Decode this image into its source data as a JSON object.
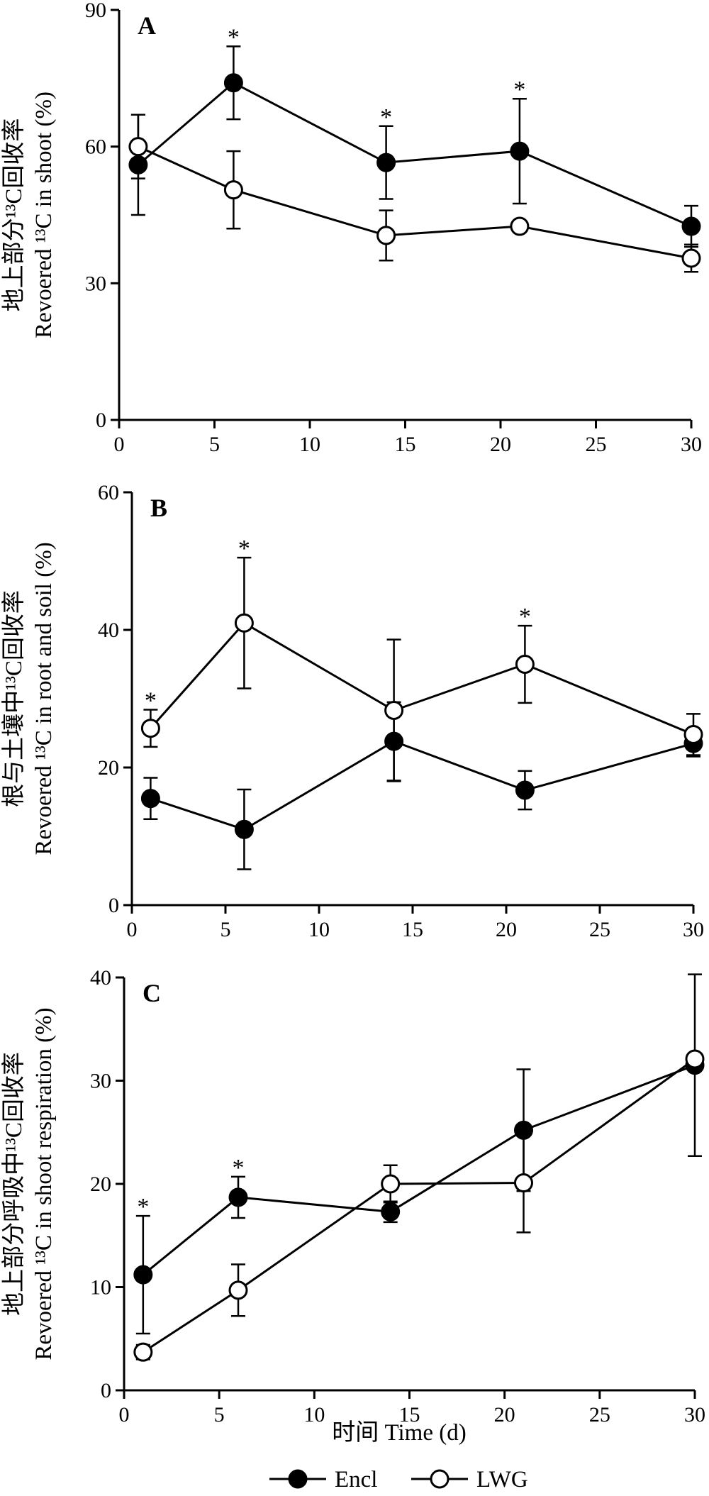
{
  "colors": {
    "axis": "#000000",
    "encl_fill": "#000000",
    "lwg_fill": "#ffffff"
  },
  "legend": {
    "position": "bottom-center",
    "items": [
      {
        "label": "Encl",
        "marker": "filled-circle"
      },
      {
        "label": "LWG",
        "marker": "open-circle"
      }
    ]
  },
  "chart_data": [
    {
      "type": "line",
      "panel_label": "A",
      "ylabel_cn": "地上部分¹³C回收率",
      "ylabel_en": "Revoered ¹³C in shoot (%)",
      "xlabel": "",
      "x": [
        1,
        6,
        14,
        21,
        30
      ],
      "xlim": [
        0,
        30
      ],
      "xticks": [
        "0",
        "5",
        "10",
        "15",
        "20",
        "25",
        "30"
      ],
      "ylim": [
        0,
        90
      ],
      "yticks": [
        "0",
        "30",
        "60",
        "90"
      ],
      "series": [
        {
          "name": "Encl",
          "values": [
            56,
            74,
            56.5,
            59,
            42.5
          ],
          "errors": [
            11,
            8,
            8,
            11.5,
            4.5
          ]
        },
        {
          "name": "LWG",
          "values": [
            60,
            50.5,
            40.5,
            42.5,
            35.5
          ],
          "errors": [
            7,
            8.5,
            5.5,
            1,
            3
          ]
        }
      ],
      "significance": [
        {
          "x": 6,
          "y": 82,
          "label": "*"
        },
        {
          "x": 14,
          "y": 64.5,
          "label": "*"
        },
        {
          "x": 21,
          "y": 70.5,
          "label": "*"
        }
      ]
    },
    {
      "type": "line",
      "panel_label": "B",
      "ylabel_cn": "根与土壤中¹³C回收率",
      "ylabel_en": "Revoered ¹³C in root and soil (%)",
      "xlabel": "",
      "x": [
        1,
        6,
        14,
        21,
        30
      ],
      "xlim": [
        0,
        30
      ],
      "xticks": [
        "0",
        "5",
        "10",
        "15",
        "20",
        "25",
        "30"
      ],
      "ylim": [
        0,
        60
      ],
      "yticks": [
        "0",
        "20",
        "40",
        "60"
      ],
      "series": [
        {
          "name": "Encl",
          "values": [
            15.5,
            11,
            23.8,
            16.7,
            23.5
          ],
          "errors": [
            3,
            5.8,
            5.7,
            2.8,
            1.9
          ]
        },
        {
          "name": "LWG",
          "values": [
            25.7,
            41,
            28.3,
            35,
            24.8
          ],
          "errors": [
            2.7,
            9.5,
            10.3,
            5.6,
            3
          ]
        }
      ],
      "significance": [
        {
          "x": 1,
          "y": 28.4,
          "label": "*"
        },
        {
          "x": 6,
          "y": 50.5,
          "label": "*"
        },
        {
          "x": 21,
          "y": 40.6,
          "label": "*"
        }
      ]
    },
    {
      "type": "line",
      "panel_label": "C",
      "ylabel_cn": "地上部分呼吸中¹³C回收率",
      "ylabel_en": "Revoered ¹³C in shoot respiration (%)",
      "xlabel": "时间 Time (d)",
      "x": [
        1,
        6,
        14,
        21,
        30
      ],
      "xlim": [
        0,
        30
      ],
      "xticks": [
        "0",
        "5",
        "10",
        "15",
        "20",
        "25",
        "30"
      ],
      "ylim": [
        0,
        40
      ],
      "yticks": [
        "0",
        "10",
        "20",
        "30",
        "40"
      ],
      "series": [
        {
          "name": "Encl",
          "values": [
            11.2,
            18.7,
            17.3,
            25.2,
            31.5
          ],
          "errors": [
            5.7,
            2,
            1,
            5.9,
            8.8
          ]
        },
        {
          "name": "LWG",
          "values": [
            3.7,
            9.7,
            20,
            20.1,
            32.1
          ],
          "errors": [
            0.7,
            2.5,
            1.8,
            4.8,
            0.5
          ]
        }
      ],
      "significance": [
        {
          "x": 1,
          "y": 16.9,
          "label": "*"
        },
        {
          "x": 6,
          "y": 20.7,
          "label": "*"
        }
      ]
    }
  ]
}
